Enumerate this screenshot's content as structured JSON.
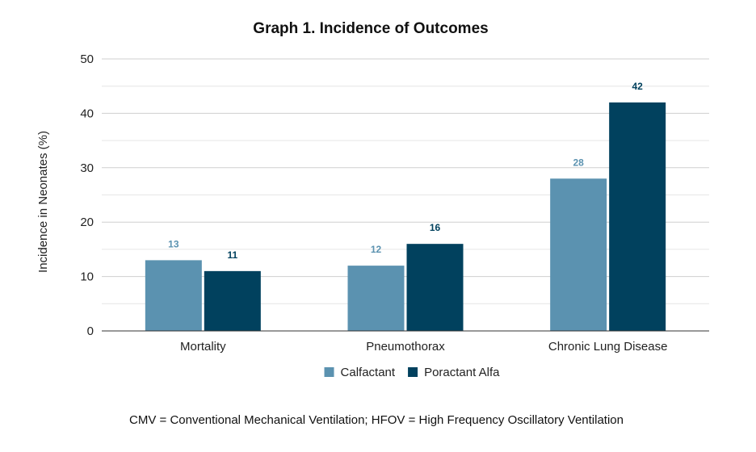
{
  "chart_data": {
    "type": "bar",
    "title": "Graph 1. Incidence of Outcomes",
    "xlabel": "",
    "ylabel": "Incidence in Neonates (%)",
    "ylim": [
      0,
      50
    ],
    "yticks": [
      0,
      10,
      20,
      30,
      40,
      50
    ],
    "grid": true,
    "categories": [
      "Mortality",
      "Pneumothorax",
      "Chronic Lung Disease"
    ],
    "series": [
      {
        "name": "Calfactant",
        "color": "#5b92b0",
        "values": [
          13,
          12,
          28
        ]
      },
      {
        "name": "Poractant Alfa",
        "color": "#01415e",
        "values": [
          11,
          16,
          42
        ]
      }
    ],
    "data_labels": true,
    "legend_position": "bottom"
  },
  "footnote": "CMV = Conventional Mechanical Ventilation; HFOV = High Frequency Oscillatory Ventilation"
}
